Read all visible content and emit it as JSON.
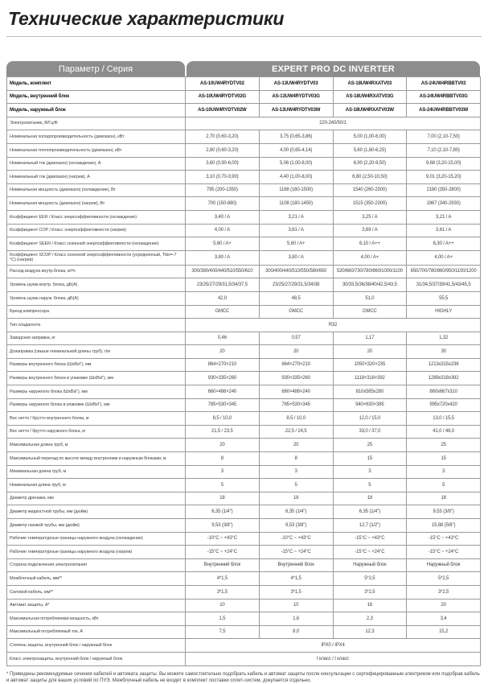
{
  "title": "Технические характеристики",
  "header": {
    "param": "Параметр / Серия",
    "series": "EXPERT PRO DC INVERTER"
  },
  "rows": [
    {
      "label": "Модель, комплект",
      "values": [
        "AS-10UW4RYDTV02",
        "AS-13UW4RYDTV03",
        "AS-18UW4RXATV03",
        "AS-24UW4RBBTV03"
      ],
      "bold": true
    },
    {
      "label": "Модель, внутренний блок",
      "values": [
        "AS-10UW4RYDTV02G",
        "AS-13UW4RYDTV03G",
        "AS-18UW4RXATV03G",
        "AS-24UW4RBBTV03G"
      ],
      "bold": true
    },
    {
      "label": "Модель, наружный блок",
      "values": [
        "AS-10UW4RYDTV02W",
        "AS-13UW4RYDTV03W",
        "AS-18UW4RXATV03W",
        "AS-24UW4RBBTV03W"
      ],
      "bold": true
    },
    {
      "label": "Электропитание, В/Гц/Ф",
      "values": [
        "220-240/50/1"
      ]
    },
    {
      "label": "Номинальная холодопроизводительность (диапазон), кВт",
      "values": [
        "2,70 (0,60-3,20)",
        "3,75 (0,65-3,86)",
        "5,00 (1,00-6,00)",
        "7,00 (2,10-7,50)"
      ]
    },
    {
      "label": "Номинальная теплопроизводительность (диапазон), кВт",
      "values": [
        "2,80 (0,60-3,20)",
        "4,00 (0,65-4,14)",
        "5,60 (1,60-6,25)",
        "7,10 (2,10-7,80)"
      ]
    },
    {
      "label": "Номинальный ток (диапазон) (охлаждение), А",
      "values": [
        "3,60 (0,90-6,00)",
        "5,06 (1,00-8,00)",
        "6,90 (2,20-9,50)",
        "9,68 (3,20-15,00)"
      ]
    },
    {
      "label": "Номинальный ток (диапазон) (нагрев), А",
      "values": [
        "3,10 (0,70-3,90)",
        "4,40 (1,00-8,00)",
        "6,80 (2,50-10,50)",
        "9,01 (3,20-15,20)"
      ]
    },
    {
      "label": "Номинальная мощность (диапазон) (охлаждение), Вт",
      "values": [
        "795 (200-1350)",
        "1168 (160-1500)",
        "1540 (260-2300)",
        "2180 (350-2800)"
      ]
    },
    {
      "label": "Номинальная мощность (диапазон) (нагрев), Вт",
      "values": [
        "700 (150-880)",
        "1108 (180-1450)",
        "1515 (350-2300)",
        "1967 (340-2930)"
      ]
    },
    {
      "label": "Коэффициент EER / Класс энергоэффективности (охлаждение)",
      "values": [
        "3,40 / A",
        "3,21 / A",
        "3,25 / A",
        "3,21 / A"
      ]
    },
    {
      "label": "Коэффициент COP / Класс энергоэффективности (нагрев)",
      "values": [
        "4,00 / A",
        "3,61 / A",
        "3,69 / A",
        "3,61 / A"
      ]
    },
    {
      "label": "Коэффициент SEER / Класс сезонной энергоэффективности (охлаждение)",
      "values": [
        "5,60 / A+",
        "5,60 / A+",
        "6,10 / A++",
        "6,30 / A++"
      ]
    },
    {
      "label": "Коэффициент SCOP / Класс сезонной энергоэффективности (усредненный, Tbiv=-7 °C) (нагрев)",
      "values": [
        "3,80 / A",
        "3,80 / A",
        "4,00 / A+",
        "4,00 / A+"
      ],
      "tall": true
    },
    {
      "label": "Расход воздуха внутр.блока, м³/ч",
      "values": [
        "300/380/400/440/510/550/610",
        "300/400/440/510/550/580/650",
        "520/660/730/780/860/1000/1100",
        "650/700/780/860/950/1100/1200"
      ]
    },
    {
      "label": "Уровень шума внутр. блока, дБ(А)",
      "values": [
        "23/25/27/29/31,5/34/37,5",
        "23/25/27/29/31,5/34/38",
        "30/33,5/36/38/40/42,5/43,5",
        "31/34,5/37/39/41,5/43/45,5"
      ]
    },
    {
      "label": "Уровень шума наруж. блока, дБ(А)",
      "values": [
        "42,0",
        "48,5",
        "51,0",
        "55,5"
      ]
    },
    {
      "label": "Бренд компрессора",
      "values": [
        "GMCC",
        "GMCC",
        "GMCC",
        "HIGHLY"
      ]
    },
    {
      "label": "Тип хладагента",
      "values": [
        "R32"
      ]
    },
    {
      "label": "Заводская заправка, кг",
      "values": [
        "0,46",
        "0,57",
        "1,17",
        "1,32"
      ]
    },
    {
      "label": "Дозаправка (свыше номинальной длины труб), г/м",
      "values": [
        "20",
        "20",
        "20",
        "30"
      ]
    },
    {
      "label": "Размеры внутреннего блока (ШхВхГ), мм",
      "values": [
        "864×270×210",
        "864×270×210",
        "1050×320×235",
        "1213x315x238"
      ]
    },
    {
      "label": "Размеры внутреннего блока в упаковке (ШхВхГ), мм",
      "values": [
        "930×335×260",
        "930×335×260",
        "1118×318×392",
        "1289x318x392"
      ]
    },
    {
      "label": "Размеры наружного блока (ШхВхГ), мм",
      "values": [
        "660×486×240",
        "660×486×240",
        "810x585x280",
        "860x667x310"
      ]
    },
    {
      "label": "Размеры наружного блока в упаковке (ШхВхГ), мм",
      "values": [
        "785×530×345",
        "785×530×345",
        "940×630×385",
        "995x720x420"
      ]
    },
    {
      "label": "Вес нетто / брутто внутреннего блока, кг",
      "values": [
        "8,5 / 10,0",
        "8,5 / 10,0",
        "12,0 / 15,0",
        "13,0 / 15,5"
      ]
    },
    {
      "label": "Вес нетто / брутто наружного блока, кг",
      "values": [
        "21,5 / 23,5",
        "22,5 / 24,5",
        "33,0 / 37,0",
        "41,0 / 46,0"
      ]
    },
    {
      "label": "Максимальная длина труб, м",
      "values": [
        "20",
        "20",
        "25",
        "25"
      ]
    },
    {
      "label": "Максимальный перепад по высоте между внутренним и наружным блоками, м",
      "values": [
        "8",
        "8",
        "15",
        "15"
      ]
    },
    {
      "label": "Минимальная длина труб, м",
      "values": [
        "3",
        "3",
        "3",
        "3"
      ]
    },
    {
      "label": "Номинальная длина труб, м",
      "values": [
        "5",
        "5",
        "5",
        "5"
      ]
    },
    {
      "label": "Диаметр дренажа, мм",
      "values": [
        "18",
        "18",
        "18",
        "18"
      ]
    },
    {
      "label": "Диаметр жидкостной трубы, мм (дюйм)",
      "values": [
        "6,35 (1/4\")",
        "6,35 (1/4\")",
        "6,35 (1/4\")",
        "9,53 (3/8\")"
      ]
    },
    {
      "label": "Диаметр газовой трубы, мм (дюйм)",
      "values": [
        "9,53 (3/8\")",
        "9,53 (3/8\")",
        "12,7 (1/2\")",
        "15,88 (5/8\")"
      ]
    },
    {
      "label": "Рабочие температурные границы наружного воздуха (охлаждение)",
      "values": [
        "-10°C ~ +43°C",
        "-10°C ~ +43°C",
        "-15°C ~ +43°C",
        "-15°C ~ +43°C"
      ]
    },
    {
      "label": "Рабочие температурные границы наружного воздуха (нагрев)",
      "values": [
        "-15°C ~ +24°C",
        "-15°C ~ +24°C",
        "-15°C ~ +24°C",
        "-15°C ~ +24°C"
      ]
    },
    {
      "label": "Сторона подключения электропитания",
      "values": [
        "Внутренний блок",
        "Внутренний блок",
        "Наружный блок",
        "Наружный блок"
      ]
    },
    {
      "label": "Межблочный кабель, мм²*",
      "values": [
        "4*1,5",
        "4*1,5",
        "5*2,5",
        "5*2,5"
      ]
    },
    {
      "label": "Силовой кабель, мм²*",
      "values": [
        "3*1,5",
        "3*1,5",
        "3*2,5",
        "3*2,5"
      ]
    },
    {
      "label": "Автомат защиты, А*",
      "values": [
        "10",
        "10",
        "16",
        "20"
      ]
    },
    {
      "label": "Максимальная потребляемая мощность, кВт",
      "values": [
        "1,5",
        "1,6",
        "2,3",
        "3,4"
      ]
    },
    {
      "label": "Максимальный потребляемый ток, А",
      "values": [
        "7,5",
        "8,0",
        "12,3",
        "15,2"
      ]
    },
    {
      "label": "Степень защиты, внутренний блок / наружный блок",
      "values": [
        "IPX0 / IPX4"
      ]
    },
    {
      "label": "Класс электрозащиты, внутренний блок / наружный блок",
      "values": [
        "I класс / I класс"
      ]
    }
  ],
  "footnote": "* Приведены рекомендуемые сечения кабелей и автомата защиты. Вы можете самостоятельно подобрать кабель и автомат защиты после консультации с сертифицированным электриком или подобрав кабель и автомат защиты для ваших условий по ПУЭ. Межблочный кабель не входит в комплект поставки сплит-систем, докупается отдельно."
}
